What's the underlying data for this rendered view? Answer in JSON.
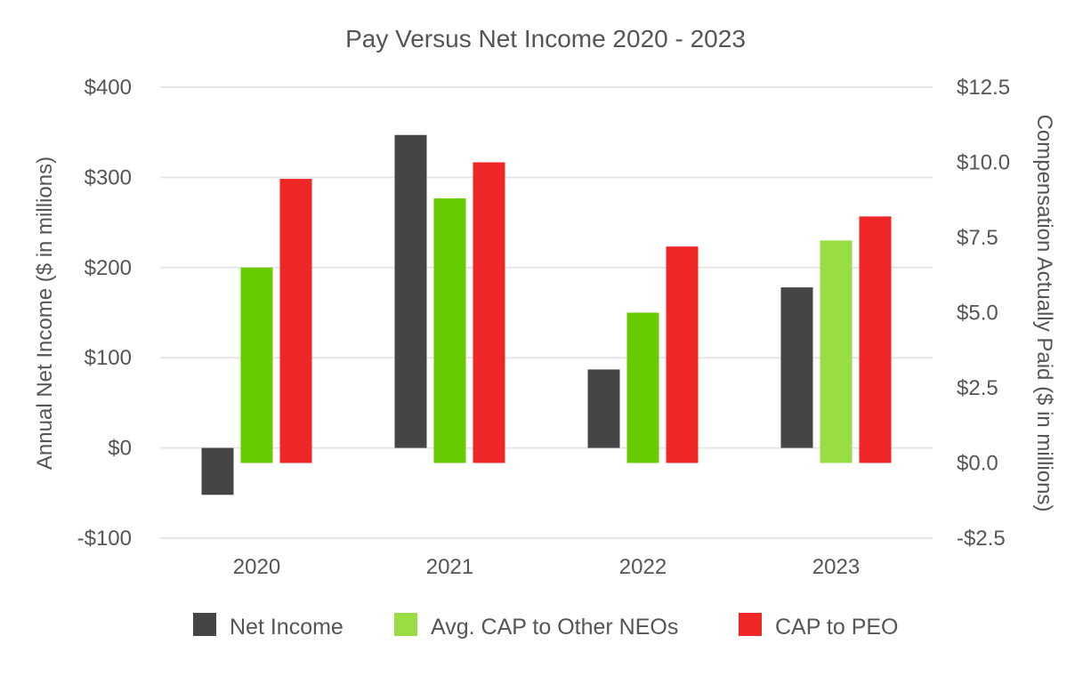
{
  "chart_data": {
    "type": "bar",
    "title": "Pay Versus Net Income 2020 - 2023",
    "categories": [
      "2020",
      "2021",
      "2022",
      "2023"
    ],
    "ylabel": "Annual Net Income ($ in millions)",
    "y2label": "Compensation Actually Paid ($ in millions)",
    "ylim": [
      -100,
      400
    ],
    "y2lim": [
      -2.5,
      12.5
    ],
    "yticks": [
      -100,
      0,
      100,
      200,
      300,
      400
    ],
    "yticklabels": [
      "-$100",
      "$0",
      "$100",
      "$200",
      "$300",
      "$400"
    ],
    "y2ticks": [
      -2.5,
      0,
      2.5,
      5,
      7.5,
      10,
      12.5
    ],
    "y2ticklabels": [
      "-$2.5",
      "$0.0",
      "$2.5",
      "$5.0",
      "$7.5",
      "$10.0",
      "$12.5"
    ],
    "grid": true,
    "legend_position": "bottom",
    "series": [
      {
        "name": "Net Income",
        "axis": "left",
        "color": "#454545",
        "values": [
          -52,
          347,
          87,
          178
        ]
      },
      {
        "name": "Avg. CAP to Other NEOs",
        "axis": "right",
        "color": "#66cc00",
        "legend_color": "#99dd44",
        "point_colors": [
          "#66cc00",
          "#66cc00",
          "#66cc00",
          "#99dd44"
        ],
        "values": [
          6.5,
          8.8,
          5.0,
          7.4
        ]
      },
      {
        "name": "CAP to PEO",
        "axis": "right",
        "color": "#ee2626",
        "values": [
          9.45,
          10.0,
          7.2,
          8.2
        ]
      }
    ]
  }
}
